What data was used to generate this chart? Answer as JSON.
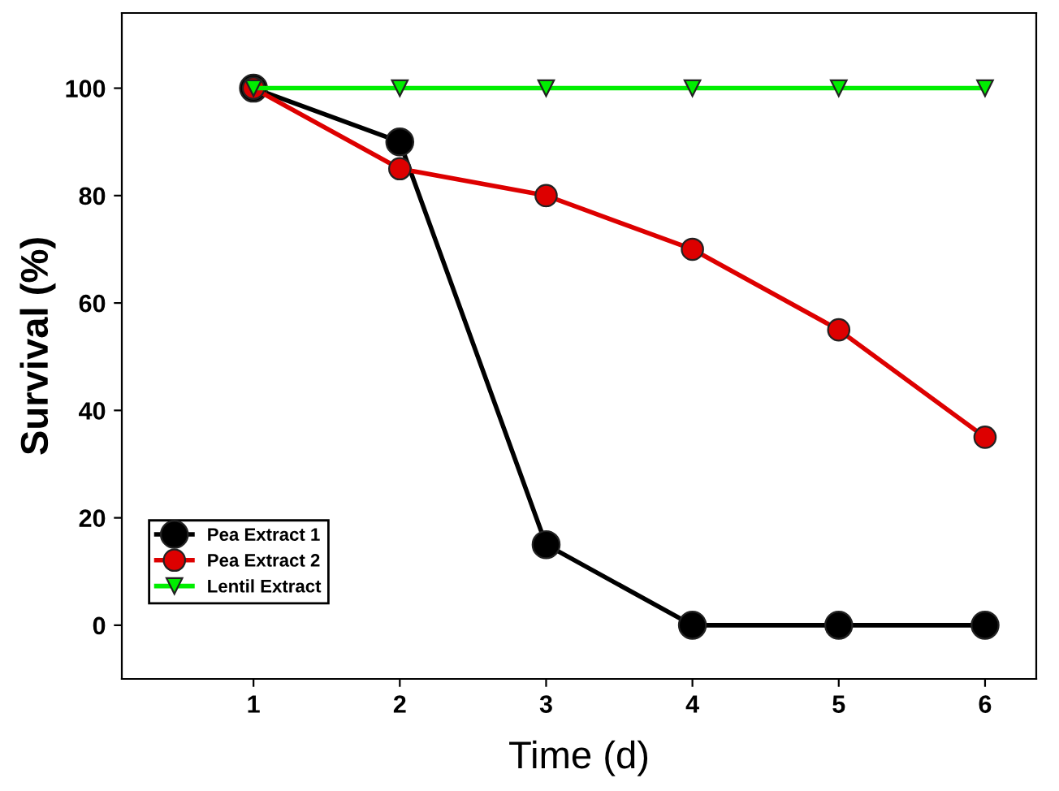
{
  "chart_data": {
    "type": "line",
    "xlabel": "Time (d)",
    "ylabel": "Survival (%)",
    "x": [
      1,
      2,
      3,
      4,
      5,
      6
    ],
    "series": [
      {
        "name": "Pea Extract 1",
        "color": "#000000",
        "marker": "circle",
        "values": [
          100,
          90,
          15,
          0,
          0,
          0
        ]
      },
      {
        "name": "Pea Extract 2",
        "color": "#dd0000",
        "marker": "circle",
        "values": [
          100,
          85,
          80,
          70,
          55,
          35
        ]
      },
      {
        "name": "Lentil Extract",
        "color": "#00ee00",
        "marker": "triangle",
        "values": [
          100,
          100,
          100,
          100,
          100,
          100
        ]
      }
    ],
    "xlim": [
      0.1,
      6.35
    ],
    "ylim": [
      -10,
      114
    ],
    "xticks": [
      1,
      2,
      3,
      4,
      5,
      6
    ],
    "yticks": [
      0,
      20,
      40,
      60,
      80,
      100
    ],
    "grid": false,
    "legend": "bottom left",
    "line_style": "solid"
  }
}
